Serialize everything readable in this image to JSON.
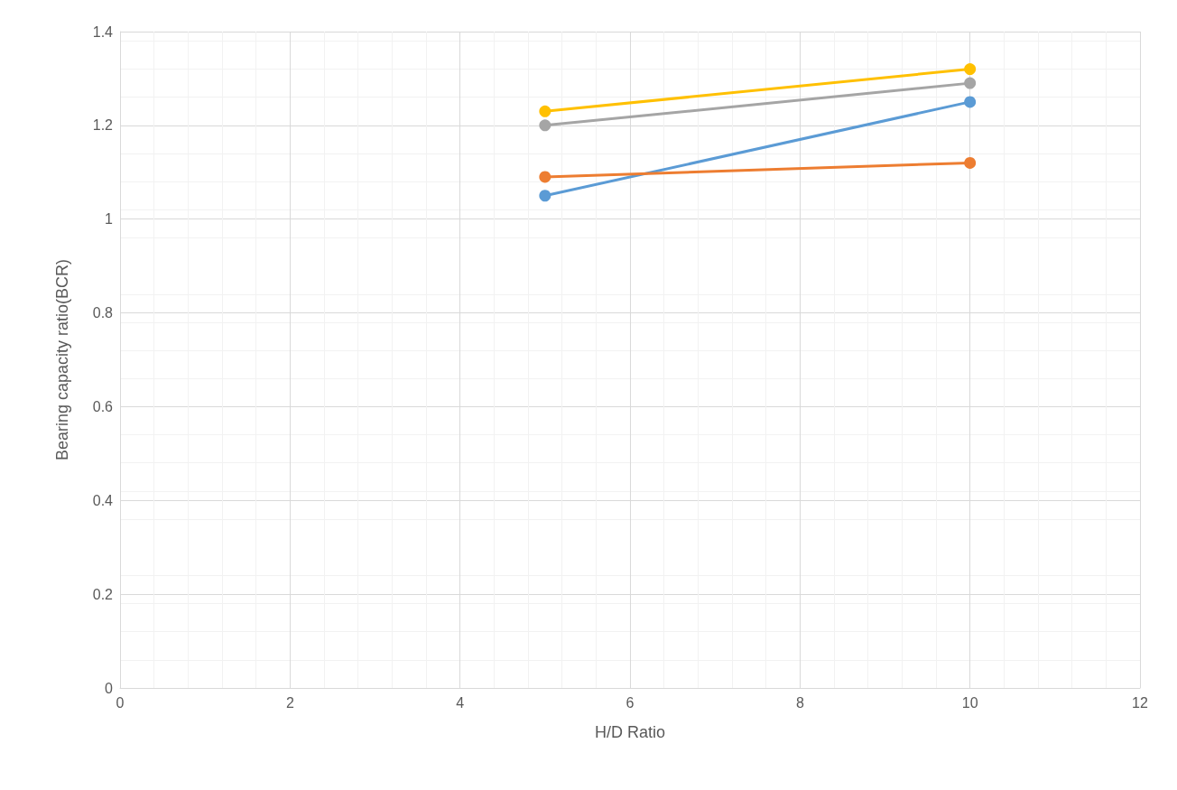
{
  "chart_data": {
    "type": "line",
    "xlabel": "H/D Ratio",
    "ylabel": "Bearing capacity ratio(BCR)",
    "xlim": [
      0,
      12
    ],
    "xticks": [
      0,
      2,
      4,
      6,
      8,
      10,
      12
    ],
    "ylim": [
      0,
      1.4
    ],
    "yticks": [
      0,
      0.2,
      0.4,
      0.6,
      0.8,
      1,
      1.2,
      1.4
    ],
    "grid": true,
    "marker": "circle",
    "x": [
      5,
      10
    ],
    "series": [
      {
        "color": "#5b9bd5",
        "values": [
          1.05,
          1.25
        ]
      },
      {
        "color": "#ed7d31",
        "values": [
          1.09,
          1.12
        ]
      },
      {
        "color": "#a5a5a5",
        "values": [
          1.2,
          1.29
        ]
      },
      {
        "color": "#ffc000",
        "values": [
          1.23,
          1.32
        ]
      }
    ]
  }
}
